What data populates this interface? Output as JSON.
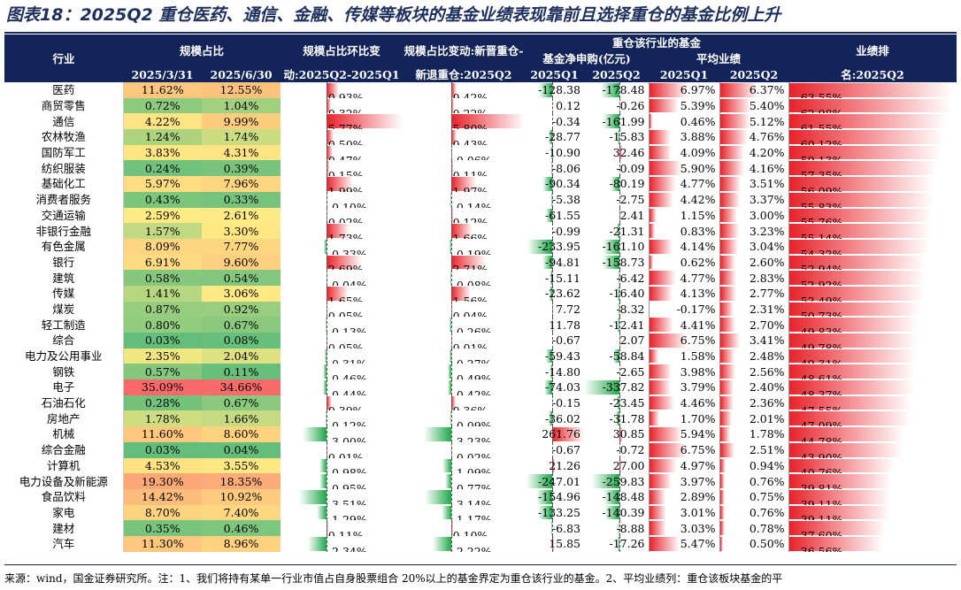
{
  "title": "图表18：2025Q2 重仓医药、通信、金融、传媒等板块的基金业绩表现靠前且选择重仓的基金比例上升",
  "footnote": "来源：wind，国金证券研究所。注：1、我们将持有某单一行业市值占自身股票组合 20%以上的基金界定为重仓该行业的基金。2、平均业绩列：重仓该板块基金的平",
  "header": {
    "group_label": "重仓该行业的基金",
    "industry": "行业",
    "scale_share": "规模占比",
    "scale_q1": "2025/3/31",
    "scale_q2": "2025/6/30",
    "qoq_line1": "规模占比环比变",
    "qoq_line2": "动:2025Q2-2025Q1",
    "new_line1": "规模占比变动:新晋重仓-",
    "new_line2": "新退重仓:2025Q2",
    "net_sub": "基金净申购(亿元)",
    "net_q1": "2025Q1",
    "net_q2": "2025Q2",
    "perf": "平均业绩",
    "perf_q1": "2025Q1",
    "perf_q2": "2025Q2",
    "rank_line1": "业绩排",
    "rank_line2": "名:2025Q2"
  },
  "chart_data": {
    "type": "table",
    "columns": [
      "行业",
      "规模占比 2025/3/31",
      "规模占比 2025/6/30",
      "规模占比环比变动:2025Q2-2025Q1",
      "规模占比变动:新晋重仓-新退重仓:2025Q2",
      "基金净申购(亿元) 2025Q1",
      "基金净申购(亿元) 2025Q2",
      "平均业绩 2025Q1",
      "平均业绩 2025Q2",
      "业绩排名:2025Q2"
    ],
    "rows": [
      [
        "医药",
        "11.62%",
        "12.55%",
        "0.93%",
        "0.42%",
        "-128.38",
        "-178.48",
        "6.97%",
        "6.37%",
        "63.55%"
      ],
      [
        "商贸零售",
        "0.72%",
        "1.04%",
        "0.32%",
        "0.22%",
        "0.12",
        "-0.26",
        "5.39%",
        "5.40%",
        "62.98%"
      ],
      [
        "通信",
        "4.22%",
        "9.99%",
        "5.77%",
        "5.80%",
        "-0.34",
        "-161.99",
        "0.46%",
        "5.12%",
        "61.55%"
      ],
      [
        "农林牧渔",
        "1.24%",
        "1.74%",
        "0.50%",
        "0.43%",
        "-28.77",
        "-15.83",
        "3.88%",
        "4.76%",
        "60.12%"
      ],
      [
        "国防军工",
        "3.83%",
        "4.31%",
        "0.47%",
        "-0.06%",
        "-10.90",
        "32.46",
        "4.09%",
        "4.20%",
        "59.13%"
      ],
      [
        "纺织服装",
        "0.24%",
        "0.39%",
        "0.15%",
        "0.11%",
        "-8.06",
        "-0.09",
        "5.90%",
        "4.16%",
        "57.35%"
      ],
      [
        "基础化工",
        "5.97%",
        "7.96%",
        "1.99%",
        "1.97%",
        "-90.34",
        "-80.19",
        "4.77%",
        "3.51%",
        "56.09%"
      ],
      [
        "消费者服务",
        "0.43%",
        "0.33%",
        "-0.10%",
        "-0.14%",
        "-5.38",
        "-2.75",
        "4.42%",
        "3.37%",
        "55.83%"
      ],
      [
        "交通运输",
        "2.59%",
        "2.61%",
        "0.02%",
        "0.12%",
        "-61.55",
        "2.41",
        "1.15%",
        "3.00%",
        "55.76%"
      ],
      [
        "非银行金融",
        "1.57%",
        "3.30%",
        "1.73%",
        "1.66%",
        "-0.99",
        "-21.31",
        "0.83%",
        "3.23%",
        "55.14%"
      ],
      [
        "有色金属",
        "8.09%",
        "7.77%",
        "-0.33%",
        "-0.19%",
        "-233.95",
        "-161.10",
        "4.14%",
        "3.04%",
        "54.32%"
      ],
      [
        "银行",
        "6.91%",
        "9.60%",
        "2.69%",
        "2.71%",
        "-94.81",
        "-158.73",
        "0.62%",
        "2.60%",
        "52.94%"
      ],
      [
        "建筑",
        "0.58%",
        "0.54%",
        "-0.04%",
        "-0.08%",
        "-15.11",
        "-6.42",
        "4.77%",
        "2.83%",
        "52.92%"
      ],
      [
        "传媒",
        "1.41%",
        "3.06%",
        "1.65%",
        "1.56%",
        "-23.62",
        "-16.40",
        "4.13%",
        "2.77%",
        "52.49%"
      ],
      [
        "煤炭",
        "0.87%",
        "0.92%",
        "0.05%",
        "0.04%",
        "7.72",
        "-8.32",
        "-0.17%",
        "2.31%",
        "50.73%"
      ],
      [
        "轻工制造",
        "0.80%",
        "0.67%",
        "-0.13%",
        "-0.26%",
        "11.78",
        "-12.41",
        "4.41%",
        "2.70%",
        "49.83%"
      ],
      [
        "综合",
        "0.03%",
        "0.08%",
        "0.05%",
        "0.01%",
        "-0.67",
        "2.07",
        "6.75%",
        "3.41%",
        "49.78%"
      ],
      [
        "电力及公用事业",
        "2.35%",
        "2.04%",
        "-0.31%",
        "-0.27%",
        "-59.43",
        "-58.84",
        "1.58%",
        "2.48%",
        "49.31%"
      ],
      [
        "钢铁",
        "0.57%",
        "0.11%",
        "-0.46%",
        "-0.49%",
        "-14.80",
        "-2.65",
        "3.98%",
        "2.56%",
        "48.61%"
      ],
      [
        "电子",
        "35.09%",
        "34.66%",
        "-0.44%",
        "-0.42%",
        "-74.03",
        "-337.82",
        "3.79%",
        "2.40%",
        "48.37%"
      ],
      [
        "石油石化",
        "0.28%",
        "0.67%",
        "0.39%",
        "0.36%",
        "-0.15",
        "-23.45",
        "4.46%",
        "2.36%",
        "47.55%"
      ],
      [
        "房地产",
        "1.78%",
        "1.66%",
        "-0.12%",
        "-0.09%",
        "-36.02",
        "-31.78",
        "1.70%",
        "2.01%",
        "47.09%"
      ],
      [
        "机械",
        "11.60%",
        "8.60%",
        "-3.00%",
        "-3.23%",
        "261.76",
        "30.85",
        "5.94%",
        "1.78%",
        "44.78%"
      ],
      [
        "综合金融",
        "0.03%",
        "0.04%",
        "0.01%",
        "-0.02%",
        "-0.67",
        "-0.72",
        "6.75%",
        "2.51%",
        "43.90%"
      ],
      [
        "计算机",
        "4.53%",
        "3.55%",
        "-0.98%",
        "-1.09%",
        "21.26",
        "27.00",
        "4.97%",
        "0.94%",
        "40.76%"
      ],
      [
        "电力设备及新能源",
        "19.30%",
        "18.35%",
        "-0.95%",
        "-0.77%",
        "-247.01",
        "-259.83",
        "3.97%",
        "0.76%",
        "39.81%"
      ],
      [
        "食品饮料",
        "14.42%",
        "10.92%",
        "-3.51%",
        "-3.14%",
        "-154.96",
        "-148.48",
        "2.89%",
        "0.75%",
        "39.11%"
      ],
      [
        "家电",
        "8.70%",
        "7.40%",
        "-1.29%",
        "-1.17%",
        "-133.25",
        "-140.39",
        "3.01%",
        "0.76%",
        "39.11%"
      ],
      [
        "建材",
        "0.35%",
        "0.46%",
        "0.11%",
        "0.10%",
        "-6.83",
        "-8.88",
        "3.03%",
        "0.78%",
        "37.60%"
      ],
      [
        "汽车",
        "11.30%",
        "8.96%",
        "-2.34%",
        "-2.22%",
        "15.85",
        "-17.26",
        "5.47%",
        "0.50%",
        "36.56%"
      ]
    ]
  },
  "colors": {
    "header_bg": "#13245a",
    "pos_bar": "#e8222a",
    "neg_bar": "#1fa84a",
    "scale_low": "#63be7b",
    "scale_mid": "#ffeb84",
    "scale_high": "#f8696b"
  }
}
